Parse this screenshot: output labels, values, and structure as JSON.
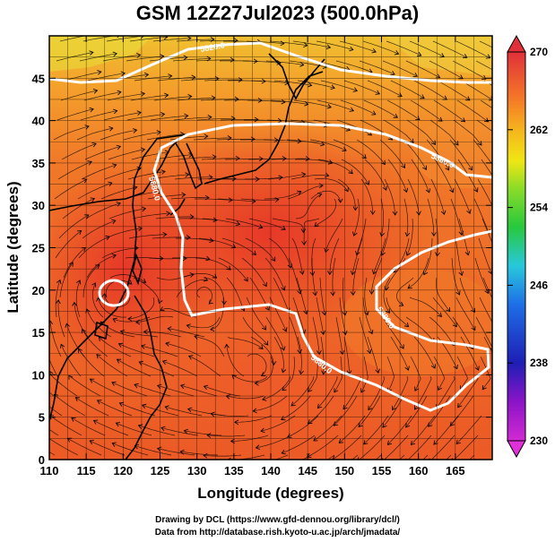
{
  "title": "GSM 12Z27Jul2023 (500.0hPa)",
  "map": {
    "xlabel": "Longitude (degrees)",
    "ylabel": "Latitude  (degrees)",
    "lon_ticks": [
      "110",
      "115",
      "120",
      "125",
      "130",
      "135",
      "140",
      "145",
      "150",
      "155",
      "160",
      "165"
    ],
    "lat_ticks": [
      "0",
      "5",
      "10",
      "15",
      "20",
      "25",
      "30",
      "35",
      "40",
      "45"
    ],
    "lon_range": [
      110,
      170
    ],
    "lat_range": [
      0,
      50
    ],
    "contours": [
      {
        "label": "5880.0",
        "level": 5880
      },
      {
        "label": "5880.0",
        "level": 5880
      },
      {
        "label": "5880.0",
        "level": 5880
      },
      {
        "label": "5880.0",
        "level": 5880
      },
      {
        "label": "5820.0",
        "level": 5820
      }
    ],
    "colors": {
      "field_warm": "#e8401c",
      "field_mid": "#f07828",
      "field_cool": "#f4b030",
      "contour": "#ffffff",
      "streamline": "#000000"
    }
  },
  "colorbar": {
    "ticks": [
      "270",
      "262",
      "254",
      "246",
      "238",
      "230"
    ],
    "range": [
      230,
      270
    ],
    "colors": [
      "#d22ad2",
      "#8c14c8",
      "#1e1eb4",
      "#1e6ee6",
      "#28c8dc",
      "#28c83c",
      "#8cdc28",
      "#f0e614",
      "#f5b41e",
      "#f57828",
      "#ec4a2a",
      "#e0303a"
    ]
  },
  "credits": {
    "line1": "Drawing by DCL (https://www.gfd-dennou.org/library/dcl/)",
    "line2": "Data from http://database.rish.kyoto-u.ac.jp/arch/jmadata/"
  }
}
